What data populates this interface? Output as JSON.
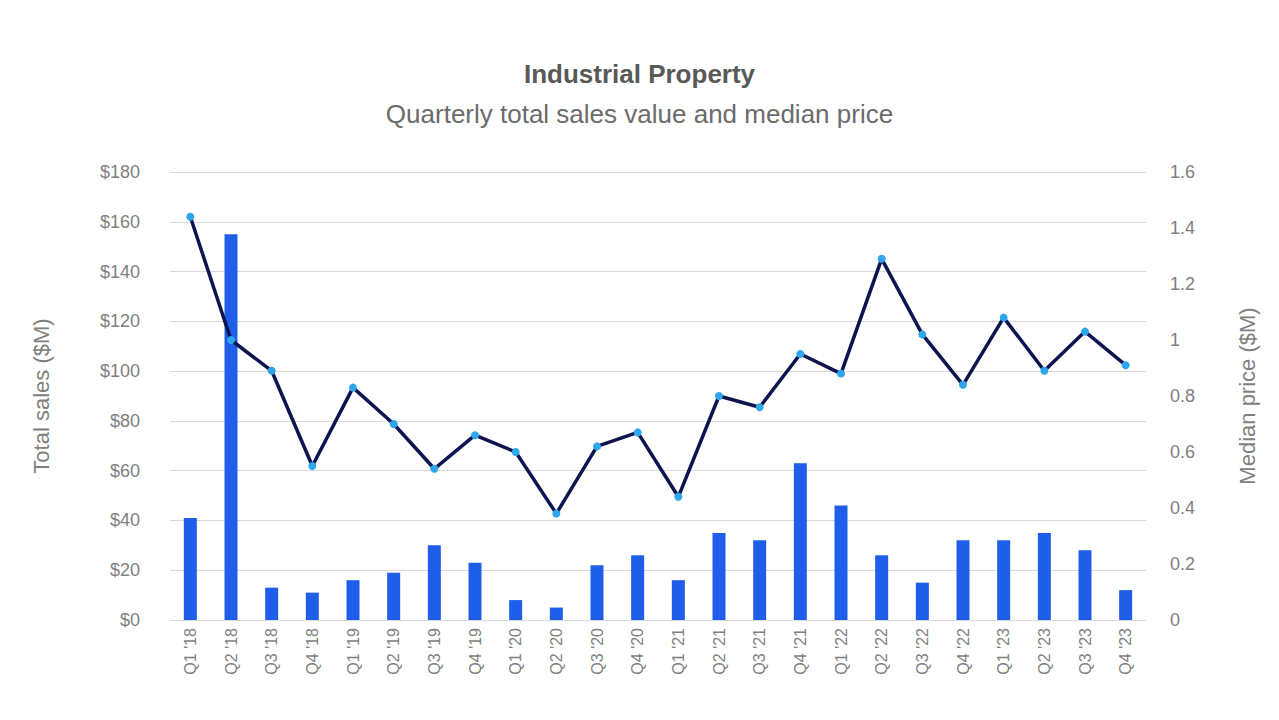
{
  "chart_data": {
    "type": "bar",
    "title": "Industrial Property",
    "subtitle": "Quarterly total sales value and median price",
    "y_label": "Total sales ($M)",
    "y2_label": "Median price ($M)",
    "categories": [
      "Q1 '18",
      "Q2 '18",
      "Q3 '18",
      "Q4 '18",
      "Q1 '19",
      "Q2 '19",
      "Q3 '19",
      "Q4 '19",
      "Q1 '20",
      "Q2 '20",
      "Q3 '20",
      "Q4 '20",
      "Q1 '21",
      "Q2 '21",
      "Q3 '21",
      "Q4 '21",
      "Q1 '22",
      "Q2 '22",
      "Q3 '22",
      "Q4 '22",
      "Q1 '23",
      "Q2 '23",
      "Q3 '23",
      "Q4 '23"
    ],
    "series": [
      {
        "type": "bar",
        "color": "#1f5ee8",
        "values": [
          41,
          155,
          13,
          11,
          16,
          19,
          30,
          23,
          8,
          5,
          22,
          26,
          16,
          35,
          32,
          63,
          46,
          26,
          15,
          32,
          32,
          35,
          28,
          12
        ]
      },
      {
        "type": "line",
        "axis": "y2",
        "color": "#0d1450",
        "marker": "circle",
        "line_style": "solid",
        "values": [
          1.44,
          1.0,
          0.89,
          0.55,
          0.83,
          0.7,
          0.54,
          0.66,
          0.6,
          0.38,
          0.62,
          0.67,
          0.44,
          0.8,
          0.76,
          0.95,
          0.88,
          1.29,
          1.02,
          0.84,
          1.08,
          0.89,
          1.03,
          0.91
        ]
      }
    ],
    "ylim": [
      0,
      180
    ],
    "yticks": [
      {
        "value": 0,
        "label": "$0"
      },
      {
        "value": 20,
        "label": "$20"
      },
      {
        "value": 40,
        "label": "$40"
      },
      {
        "value": 60,
        "label": "$60"
      },
      {
        "value": 80,
        "label": "$80"
      },
      {
        "value": 100,
        "label": "$100"
      },
      {
        "value": 120,
        "label": "$120"
      },
      {
        "value": 140,
        "label": "$140"
      },
      {
        "value": 160,
        "label": "$160"
      },
      {
        "value": 180,
        "label": "$180"
      }
    ],
    "y2lim": [
      0,
      1.6
    ],
    "y2ticks": [
      0,
      0.2,
      0.4,
      0.6,
      0.8,
      1,
      1.2,
      1.4,
      1.6
    ],
    "grid": true
  }
}
